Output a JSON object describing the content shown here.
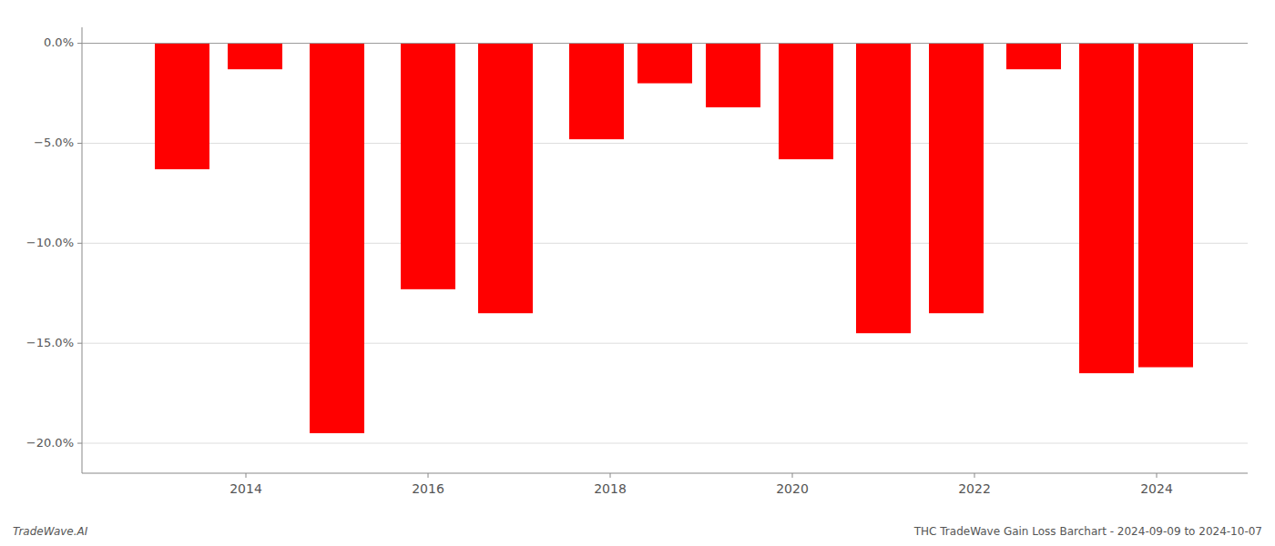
{
  "chart_data": {
    "type": "bar",
    "x": [
      2013.3,
      2014.1,
      2015.0,
      2016.0,
      2016.85,
      2017.85,
      2018.6,
      2019.35,
      2020.15,
      2021.0,
      2021.8,
      2022.65,
      2023.45,
      2024.1
    ],
    "values": [
      -6.3,
      -1.3,
      -19.5,
      -12.3,
      -13.5,
      -4.8,
      -2.0,
      -3.2,
      -5.8,
      -14.5,
      -13.5,
      -1.3,
      -16.5,
      -16.2
    ],
    "color": "#ff0000",
    "xlim": [
      2012.2,
      2025.0
    ],
    "xticks": [
      2014,
      2016,
      2018,
      2020,
      2022,
      2024
    ],
    "ylim": [
      -21.5,
      0.8
    ],
    "yticks": [
      {
        "value": 0.0,
        "label": "0.0%"
      },
      {
        "value": -5.0,
        "label": "−5.0%"
      },
      {
        "value": -10.0,
        "label": "−10.0%"
      },
      {
        "value": -15.0,
        "label": "−15.0%"
      },
      {
        "value": -20.0,
        "label": "−20.0%"
      }
    ],
    "grid": true,
    "annotations": [
      "TradeWave.AI",
      "THC TradeWave Gain Loss Barchart - 2024-09-09 to 2024-10-07"
    ]
  }
}
